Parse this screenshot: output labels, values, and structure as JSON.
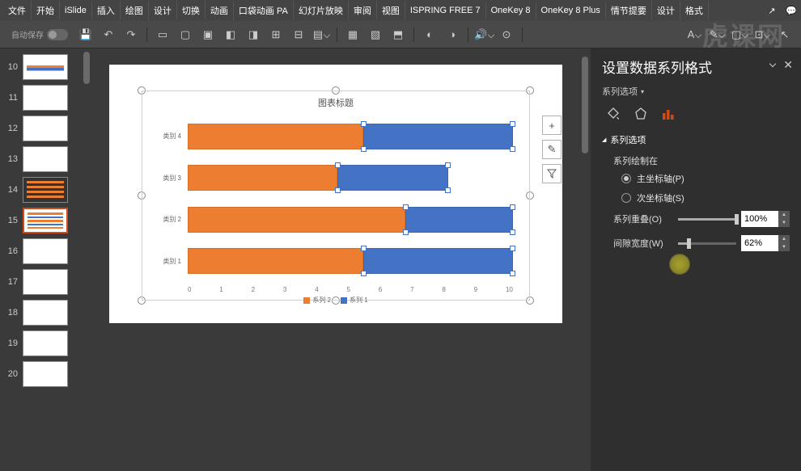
{
  "menu": {
    "items": [
      "文件",
      "开始",
      "iSlide",
      "插入",
      "绘图",
      "设计",
      "切换",
      "动画",
      "口袋动画 PA",
      "幻灯片放映",
      "审阅",
      "视图",
      "ISPRING FREE 7",
      "OneKey 8",
      "OneKey 8 Plus",
      "情节提要",
      "设计",
      "格式"
    ]
  },
  "autosave_label": "自动保存",
  "thumbs": [
    {
      "num": "10"
    },
    {
      "num": "11"
    },
    {
      "num": "12"
    },
    {
      "num": "13"
    },
    {
      "num": "14"
    },
    {
      "num": "15",
      "active": true
    },
    {
      "num": "16"
    },
    {
      "num": "17"
    },
    {
      "num": "18"
    },
    {
      "num": "19"
    },
    {
      "num": "20"
    }
  ],
  "chart": {
    "title": "图表标题",
    "colors": {
      "s1": "#4472c4",
      "s2": "#ed7d31"
    },
    "categories": [
      "类别 4",
      "类别 3",
      "类别 2",
      "类别 1"
    ],
    "series2_pct": [
      54,
      46,
      67,
      54
    ],
    "series1_pct": [
      46,
      34,
      33,
      46
    ],
    "xticks": [
      "0",
      "1",
      "2",
      "3",
      "4",
      "5",
      "6",
      "7",
      "8",
      "9",
      "10"
    ],
    "legend": [
      "系列 2",
      "系列 1"
    ]
  },
  "chart_buttons": {
    "add": "+",
    "brush": "✎",
    "filter": "▼"
  },
  "panel": {
    "title": "设置数据系列格式",
    "subtitle": "系列选项",
    "section": "系列选项",
    "plot_on": "系列绘制在",
    "primary": "主坐标轴(P)",
    "secondary": "次坐标轴(S)",
    "overlap_label": "系列重叠(O)",
    "overlap_value": "100%",
    "overlap_pct": 100,
    "gap_label": "间隙宽度(W)",
    "gap_value": "62%",
    "gap_pct": 18
  },
  "watermark": "虎课网"
}
